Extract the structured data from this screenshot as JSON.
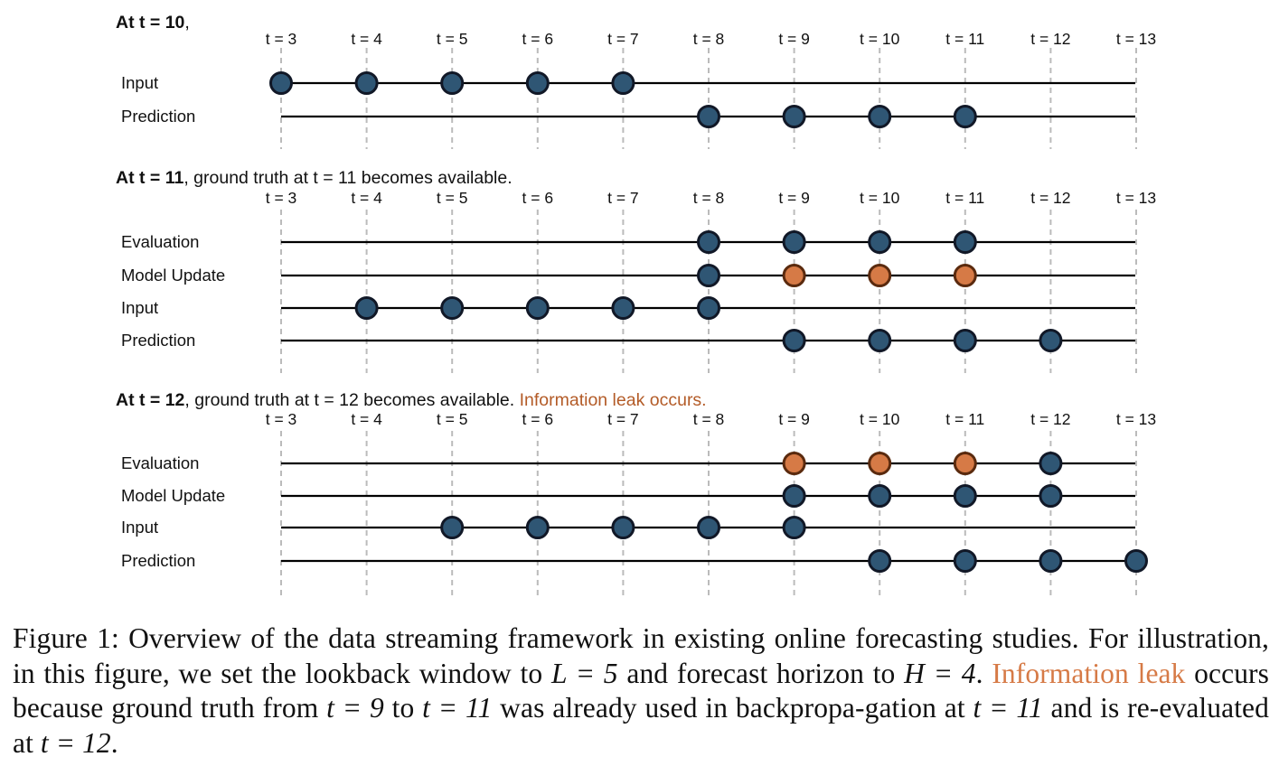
{
  "colors": {
    "node_blue": "#2F5674",
    "node_orange": "#D67A46",
    "node_stroke": "#111827",
    "leak_text": "#B35B27",
    "grid": "#BBBBBB"
  },
  "time_labels": [
    "t = 3",
    "t = 4",
    "t = 5",
    "t = 6",
    "t = 7",
    "t = 8",
    "t = 9",
    "t = 10",
    "t = 11",
    "t = 12",
    "t = 13"
  ],
  "panels": [
    {
      "title_bold": "At t = 10",
      "title_rest": ",",
      "title_leak": "",
      "rows": [
        {
          "label": "Input",
          "blue": [
            3,
            4,
            5,
            6,
            7
          ],
          "orange": []
        },
        {
          "label": "Prediction",
          "blue": [
            8,
            9,
            10,
            11
          ],
          "orange": []
        }
      ]
    },
    {
      "title_bold": "At t = 11",
      "title_rest": ", ground truth at t = 11 becomes available.",
      "title_leak": "",
      "rows": [
        {
          "label": "Evaluation",
          "blue": [
            8,
            9,
            10,
            11
          ],
          "orange": []
        },
        {
          "label": "Model Update",
          "blue": [
            8
          ],
          "orange": [
            9,
            10,
            11
          ]
        },
        {
          "label": "Input",
          "blue": [
            4,
            5,
            6,
            7,
            8
          ],
          "orange": []
        },
        {
          "label": "Prediction",
          "blue": [
            9,
            10,
            11,
            12
          ],
          "orange": []
        }
      ]
    },
    {
      "title_bold": "At t = 12",
      "title_rest": ", ground truth at t = 12 becomes available. ",
      "title_leak": "Information leak occurs.",
      "rows": [
        {
          "label": "Evaluation",
          "blue": [
            12
          ],
          "orange": [
            9,
            10,
            11
          ]
        },
        {
          "label": "Model Update",
          "blue": [
            9,
            10,
            11,
            12
          ],
          "orange": []
        },
        {
          "label": "Input",
          "blue": [
            5,
            6,
            7,
            8,
            9
          ],
          "orange": []
        },
        {
          "label": "Prediction",
          "blue": [
            10,
            11,
            12,
            13
          ],
          "orange": []
        }
      ]
    }
  ],
  "caption": {
    "part1": "Figure 1: Overview of the data streaming framework in existing online forecasting studies. For illustration, in this figure, we set the lookback window to ",
    "L_eq": "L = 5",
    "part2": " and forecast horizon to ",
    "H_eq": "H = 4",
    "part3": ". ",
    "leak": "Information leak",
    "part4": " occurs because ground truth from ",
    "t9": "t = 9",
    "part5": " to ",
    "t11a": "t = 11",
    "part6": " was already used in backpropa-gation at ",
    "t11b": "t = 11",
    "part7": " and is re-evaluated at ",
    "t12": "t = 12",
    "part8": "."
  }
}
